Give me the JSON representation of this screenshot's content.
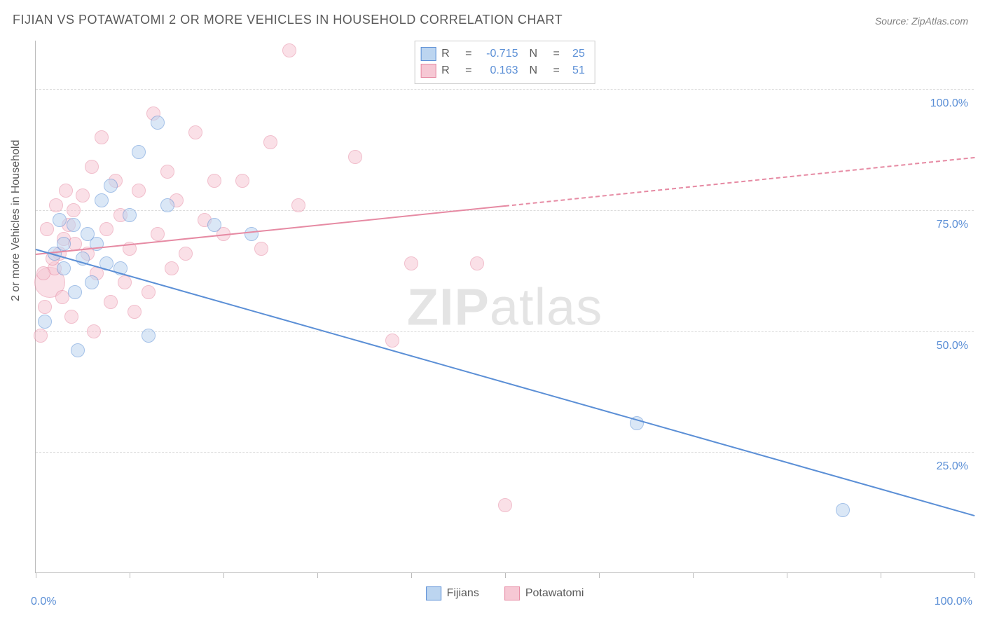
{
  "title": "FIJIAN VS POTAWATOMI 2 OR MORE VEHICLES IN HOUSEHOLD CORRELATION CHART",
  "source": "Source: ZipAtlas.com",
  "ylabel": "2 or more Vehicles in Household",
  "watermark_bold": "ZIP",
  "watermark_light": "atlas",
  "chart": {
    "type": "scatter",
    "xlim": [
      0,
      100
    ],
    "ylim": [
      0,
      110
    ],
    "ygrid": [
      25,
      50,
      75,
      100
    ],
    "ytick_labels": [
      "25.0%",
      "50.0%",
      "75.0%",
      "100.0%"
    ],
    "xtick_positions": [
      0,
      10,
      20,
      30,
      40,
      50,
      60,
      70,
      80,
      90,
      100
    ],
    "x_min_label": "0.0%",
    "x_max_label": "100.0%",
    "background_color": "#ffffff",
    "grid_color": "#dcdcdc",
    "axis_color": "#bbbbbb",
    "label_color": "#5b8fd6",
    "title_color": "#5a5a5a",
    "title_fontsize": 18,
    "label_fontsize": 16,
    "point_radius": 10,
    "point_opacity": 0.55,
    "trend_width": 2
  },
  "series": {
    "fijians": {
      "label": "Fijians",
      "fill": "#bcd5f0",
      "stroke": "#5b8fd6",
      "R": "-0.715",
      "N": "25",
      "trend": {
        "x1": 0,
        "y1": 67,
        "x2": 100,
        "y2": 12,
        "dashed": false
      },
      "points": [
        {
          "x": 1,
          "y": 52
        },
        {
          "x": 4.5,
          "y": 46
        },
        {
          "x": 3,
          "y": 63
        },
        {
          "x": 2,
          "y": 66
        },
        {
          "x": 5,
          "y": 65
        },
        {
          "x": 6.5,
          "y": 68
        },
        {
          "x": 4,
          "y": 72
        },
        {
          "x": 7,
          "y": 77
        },
        {
          "x": 9,
          "y": 63
        },
        {
          "x": 10,
          "y": 74
        },
        {
          "x": 12,
          "y": 49
        },
        {
          "x": 11,
          "y": 87
        },
        {
          "x": 13,
          "y": 93
        },
        {
          "x": 14,
          "y": 76
        },
        {
          "x": 19,
          "y": 72
        },
        {
          "x": 23,
          "y": 70
        },
        {
          "x": 3,
          "y": 68
        },
        {
          "x": 5.5,
          "y": 70
        },
        {
          "x": 8,
          "y": 80
        },
        {
          "x": 2.5,
          "y": 73
        },
        {
          "x": 6,
          "y": 60
        },
        {
          "x": 4.2,
          "y": 58
        },
        {
          "x": 7.5,
          "y": 64
        },
        {
          "x": 64,
          "y": 31
        },
        {
          "x": 86,
          "y": 13
        }
      ]
    },
    "potawatomi": {
      "label": "Potawatomi",
      "fill": "#f6c8d4",
      "stroke": "#e68aa3",
      "R": "0.163",
      "N": "51",
      "trend_solid": {
        "x1": 0,
        "y1": 66,
        "x2": 50,
        "y2": 76
      },
      "trend_dash": {
        "x1": 50,
        "y1": 76,
        "x2": 100,
        "y2": 86
      },
      "points": [
        {
          "x": 0.5,
          "y": 49
        },
        {
          "x": 1,
          "y": 55
        },
        {
          "x": 1.5,
          "y": 60,
          "r": 22
        },
        {
          "x": 2,
          "y": 63
        },
        {
          "x": 2.5,
          "y": 66
        },
        {
          "x": 3,
          "y": 69
        },
        {
          "x": 3.5,
          "y": 72
        },
        {
          "x": 4,
          "y": 75
        },
        {
          "x": 1.2,
          "y": 71
        },
        {
          "x": 2.2,
          "y": 76
        },
        {
          "x": 3.2,
          "y": 79
        },
        {
          "x": 4.2,
          "y": 68
        },
        {
          "x": 5,
          "y": 78
        },
        {
          "x": 5.5,
          "y": 66
        },
        {
          "x": 6,
          "y": 84
        },
        {
          "x": 6.5,
          "y": 62
        },
        {
          "x": 7,
          "y": 90
        },
        {
          "x": 7.5,
          "y": 71
        },
        {
          "x": 8,
          "y": 56
        },
        {
          "x": 8.5,
          "y": 81
        },
        {
          "x": 9,
          "y": 74
        },
        {
          "x": 9.5,
          "y": 60
        },
        {
          "x": 10,
          "y": 67
        },
        {
          "x": 10.5,
          "y": 54
        },
        {
          "x": 11,
          "y": 79
        },
        {
          "x": 12,
          "y": 58
        },
        {
          "x": 12.5,
          "y": 95
        },
        {
          "x": 13,
          "y": 70
        },
        {
          "x": 14,
          "y": 83
        },
        {
          "x": 15,
          "y": 77
        },
        {
          "x": 16,
          "y": 66
        },
        {
          "x": 17,
          "y": 91
        },
        {
          "x": 18,
          "y": 73
        },
        {
          "x": 19,
          "y": 81
        },
        {
          "x": 20,
          "y": 70
        },
        {
          "x": 22,
          "y": 81
        },
        {
          "x": 24,
          "y": 67
        },
        {
          "x": 25,
          "y": 89
        },
        {
          "x": 27,
          "y": 108
        },
        {
          "x": 28,
          "y": 76
        },
        {
          "x": 34,
          "y": 86
        },
        {
          "x": 38,
          "y": 48
        },
        {
          "x": 3.8,
          "y": 53
        },
        {
          "x": 6.2,
          "y": 50
        },
        {
          "x": 2.8,
          "y": 57
        },
        {
          "x": 1.8,
          "y": 65
        },
        {
          "x": 0.8,
          "y": 62
        },
        {
          "x": 40,
          "y": 64
        },
        {
          "x": 47,
          "y": 64
        },
        {
          "x": 50,
          "y": 14
        },
        {
          "x": 14.5,
          "y": 63
        }
      ]
    }
  }
}
